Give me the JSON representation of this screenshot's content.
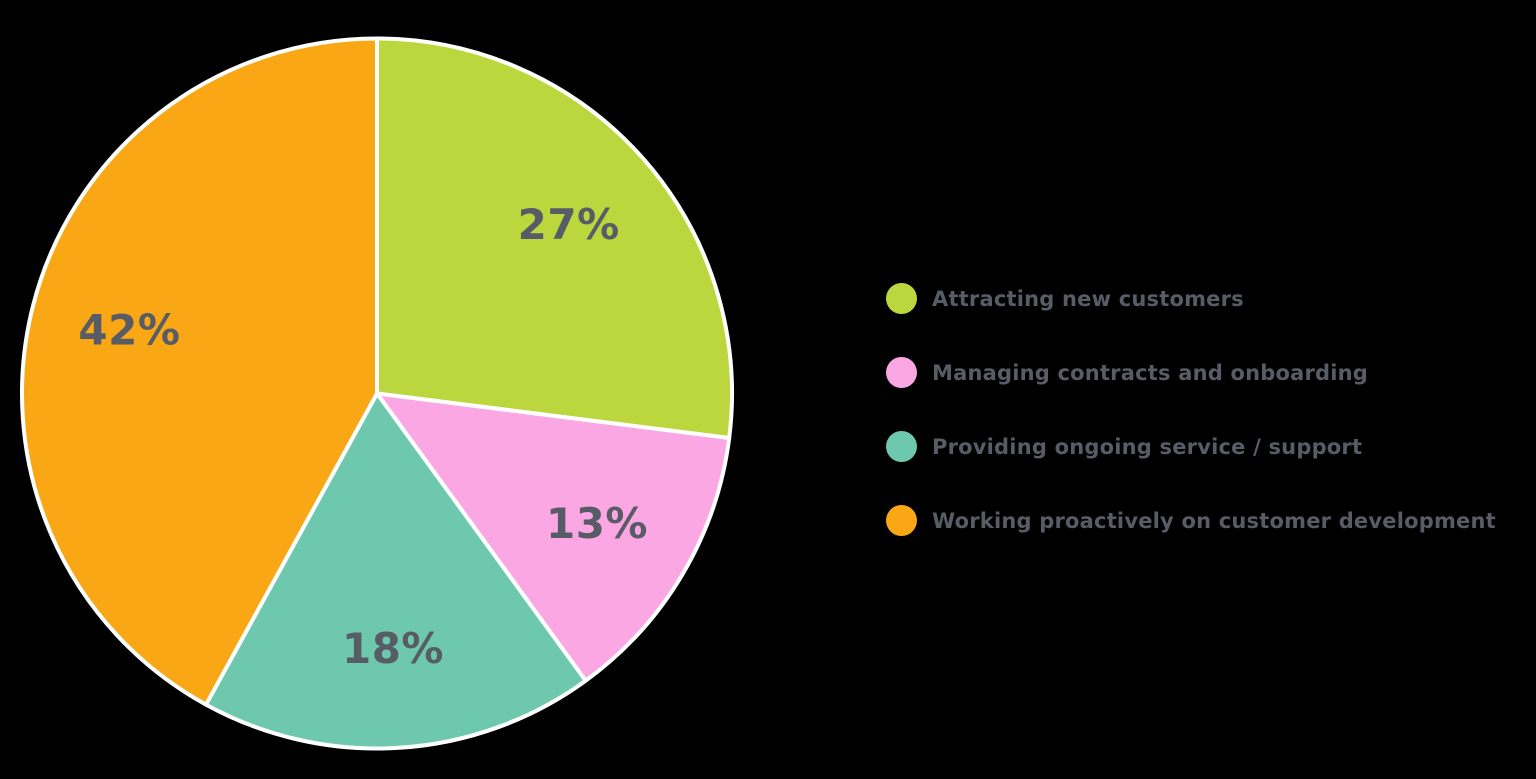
{
  "background_color": "#000000",
  "text_color": "#575c66",
  "chart_data": {
    "type": "pie",
    "title": "",
    "start_angle_deg": 0,
    "direction": "clockwise",
    "slice_border_color": "#ffffff",
    "legend_position": "right",
    "slices": [
      {
        "label": "Attracting new customers",
        "value": 27,
        "display": "27%",
        "color": "#bcd63e"
      },
      {
        "label": "Managing contracts and onboarding",
        "value": 13,
        "display": "13%",
        "color": "#fba7e3"
      },
      {
        "label": "Providing ongoing service / support",
        "value": 18,
        "display": "18%",
        "color": "#6ec8ae"
      },
      {
        "label": "Working proactively on customer development",
        "value": 42,
        "display": "42%",
        "color": "#f9a714"
      }
    ]
  }
}
